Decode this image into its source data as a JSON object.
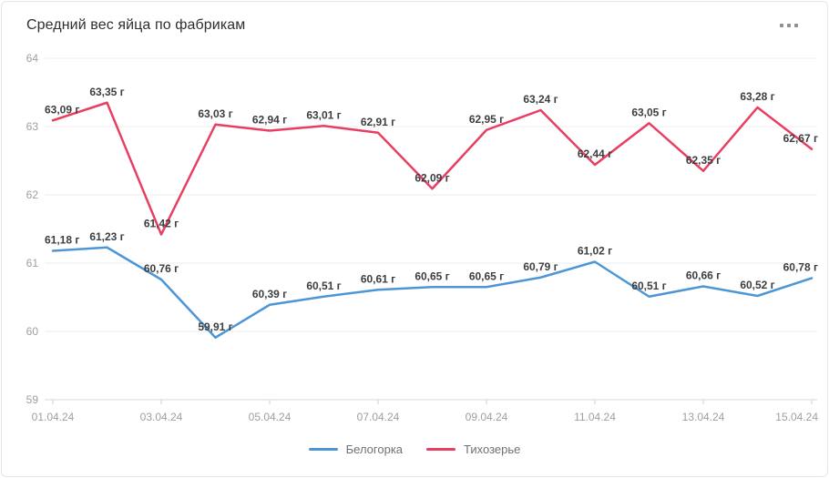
{
  "card": {
    "title": "Средний вес яйца по фабрикам",
    "menu_icon": "ellipsis-horizontal"
  },
  "chart_data": {
    "type": "line",
    "title": "Средний вес яйца по фабрикам",
    "xlabel": "",
    "ylabel": "",
    "ylim": [
      59,
      64
    ],
    "y_ticks": [
      59,
      60,
      61,
      62,
      63,
      64
    ],
    "grid": "horizontal",
    "legend_position": "bottom",
    "categories": [
      "01.04.24",
      "02.04.24",
      "03.04.24",
      "04.04.24",
      "05.04.24",
      "06.04.24",
      "07.04.24",
      "08.04.24",
      "09.04.24",
      "10.04.24",
      "11.04.24",
      "12.04.24",
      "13.04.24",
      "14.04.24",
      "15.04.24"
    ],
    "x_tick_labels": [
      "01.04.24",
      "03.04.24",
      "05.04.24",
      "07.04.24",
      "09.04.24",
      "11.04.24",
      "13.04.24",
      "15.04.24"
    ],
    "x_tick_indices": [
      0,
      2,
      4,
      6,
      8,
      10,
      12,
      14
    ],
    "series": [
      {
        "name": "Белогорка",
        "color": "#4d96d6",
        "values": [
          61.18,
          61.23,
          60.76,
          59.91,
          60.39,
          60.51,
          60.61,
          60.65,
          60.65,
          60.79,
          61.02,
          60.51,
          60.66,
          60.52,
          60.78
        ],
        "labels": [
          "61,18 г",
          "61,23 г",
          "60,76 г",
          "59,91 г",
          "60,39 г",
          "60,51 г",
          "60,61 г",
          "60,65 г",
          "60,65 г",
          "60,79 г",
          "61,02 г",
          "60,51 г",
          "60,66 г",
          "60,52 г",
          "60,78 г"
        ]
      },
      {
        "name": "Тихозерье",
        "color": "#e83e62",
        "values": [
          63.09,
          63.35,
          61.42,
          63.03,
          62.94,
          63.01,
          62.91,
          62.09,
          62.95,
          63.24,
          62.44,
          63.05,
          62.35,
          63.28,
          62.67
        ],
        "labels": [
          "63,09 г",
          "63,35 г",
          "61,42 г",
          "63,03 г",
          "62,94 г",
          "63,01 г",
          "62,91 г",
          "62,09 г",
          "62,95 г",
          "63,24 г",
          "62,44 г",
          "63,05 г",
          "62,35 г",
          "63,28 г",
          "62,67 г"
        ]
      }
    ]
  },
  "colors": {
    "grid_line": "#ececec",
    "axis_line": "#d9d9d9",
    "tick_mark": "#d0d0d0",
    "axis_text": "#9c9fa3",
    "point_label_text": "#3c3e40",
    "title_text": "#2f2f2f",
    "legend_text": "#6e7176",
    "card_border": "#e4e6e8"
  }
}
